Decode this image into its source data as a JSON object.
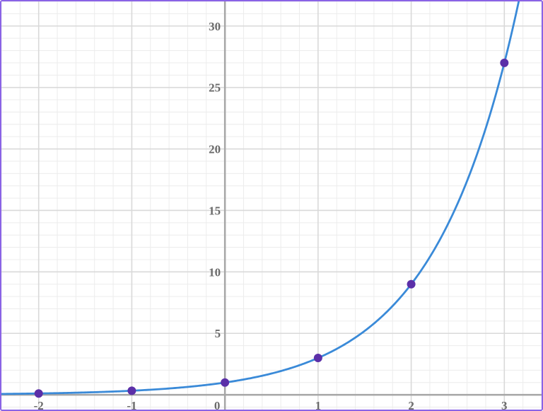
{
  "chart_data": {
    "type": "line",
    "title": "",
    "xlabel": "",
    "ylabel": "",
    "function": "y = 3^x",
    "xlim": [
      -2.4,
      3.4
    ],
    "ylim": [
      -1.2,
      32
    ],
    "x_ticks": [
      -2,
      -1,
      0,
      1,
      2,
      3
    ],
    "x_tick_labels": [
      "-2",
      "-1",
      "0",
      "1",
      "2",
      "3"
    ],
    "y_ticks": [
      5,
      10,
      15,
      20,
      25,
      30
    ],
    "y_tick_labels": [
      "5",
      "10",
      "15",
      "20",
      "25",
      "30"
    ],
    "grid": true,
    "minor_grid_per_unit": 5,
    "series": [
      {
        "x": [
          -2,
          -1,
          0,
          1,
          2,
          3
        ],
        "y": [
          0.111,
          0.333,
          1,
          3,
          9,
          27
        ]
      }
    ],
    "colors": {
      "curve": "#3a8ad8",
      "points": "#5b2fa8",
      "axis": "#a6a6a6",
      "grid_major": "#d9d9d9",
      "grid_minor": "#ececec",
      "labels": "#6b6b6b",
      "frame": "#8a63e6"
    }
  }
}
